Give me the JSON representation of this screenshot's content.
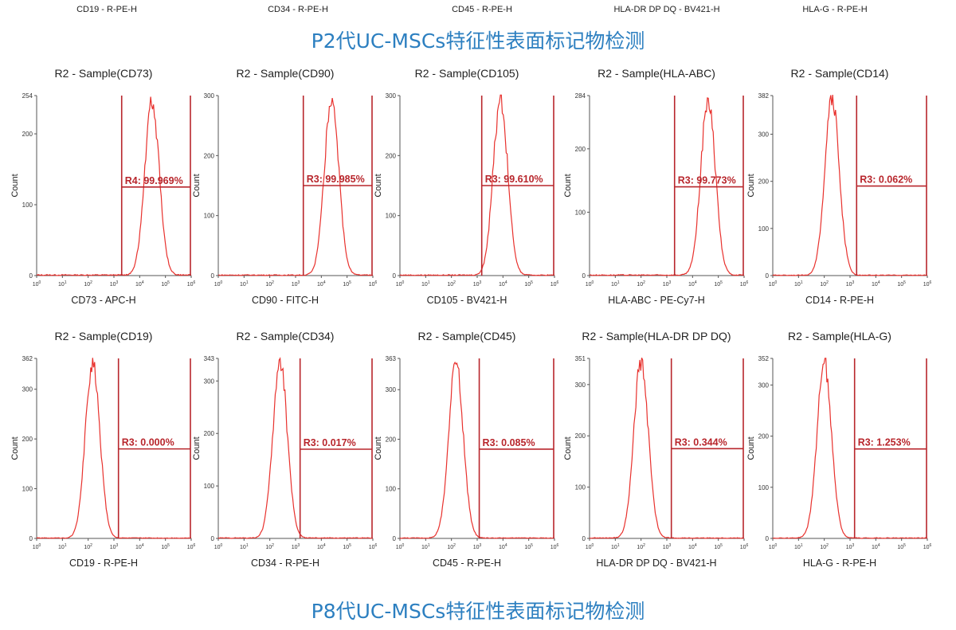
{
  "top_partial_labels": [
    "CD19 - R-PE-H",
    "CD34 - R-PE-H",
    "CD45 - R-PE-H",
    "HLA-DR DP DQ - BV421-H",
    "HLA-G - R-PE-H"
  ],
  "title_top": "P2代UC-MSCs特征性表面标记物检测",
  "title_bottom": "P8代UC-MSCs特征性表面标记物检测",
  "colors": {
    "title": "#2c7fc0",
    "histogram": "#e8312d",
    "gate": "#b8262c",
    "axis": "#555555"
  },
  "chart_data": [
    {
      "type": "area",
      "title": "R2 - Sample(CD73)",
      "xlabel": "CD73 - APC-H",
      "ylabel": "Count",
      "x_scale": "log",
      "xlim": [
        1,
        1000000
      ],
      "ylim": [
        0,
        254
      ],
      "yticks": [
        0,
        100,
        200,
        254
      ],
      "peak_x": 30000,
      "peak_y": 254,
      "gate_x": [
        2000,
        1000000
      ],
      "gate_label": "R4: 99.969%",
      "gate_y": 125
    },
    {
      "type": "area",
      "title": "R2 - Sample(CD90)",
      "xlabel": "CD90 - FITC-H",
      "ylabel": "Count",
      "x_scale": "log",
      "xlim": [
        1,
        1000000
      ],
      "ylim": [
        0,
        300
      ],
      "yticks": [
        0,
        100,
        200,
        300
      ],
      "peak_x": 25000,
      "peak_y": 300,
      "gate_x": [
        2000,
        1000000
      ],
      "gate_label": "R3: 99.985%",
      "gate_y": 150
    },
    {
      "type": "area",
      "title": "R2 - Sample(CD105)",
      "xlabel": "CD105 - BV421-H",
      "ylabel": "Count",
      "x_scale": "log",
      "xlim": [
        1,
        1000000
      ],
      "ylim": [
        0,
        300
      ],
      "yticks": [
        0,
        100,
        200,
        300
      ],
      "peak_x": 8000,
      "peak_y": 300,
      "gate_x": [
        1500,
        1000000
      ],
      "gate_label": "R3: 99.610%",
      "gate_y": 150
    },
    {
      "type": "area",
      "title": "R2 - Sample(HLA-ABC)",
      "xlabel": "HLA-ABC - PE-Cy7-H",
      "ylabel": "Count",
      "x_scale": "log",
      "xlim": [
        1,
        1000000
      ],
      "ylim": [
        0,
        284
      ],
      "yticks": [
        0,
        100,
        200,
        284
      ],
      "peak_x": 40000,
      "peak_y": 284,
      "gate_x": [
        2000,
        1000000
      ],
      "gate_label": "R3: 99.773%",
      "gate_y": 140
    },
    {
      "type": "area",
      "title": "R2 - Sample(CD14)",
      "xlabel": "CD14 - R-PE-H",
      "ylabel": "Count",
      "x_scale": "log",
      "xlim": [
        1,
        1000000
      ],
      "ylim": [
        0,
        382
      ],
      "yticks": [
        0,
        100,
        200,
        300,
        382
      ],
      "peak_x": 200,
      "peak_y": 382,
      "gate_x": [
        1800,
        1000000
      ],
      "gate_label": "R3: 0.062%",
      "gate_y": 190
    },
    {
      "type": "area",
      "title": "R2 - Sample(CD19)",
      "xlabel": "CD19 - R-PE-H",
      "ylabel": "Count",
      "x_scale": "log",
      "xlim": [
        1,
        1000000
      ],
      "ylim": [
        0,
        362
      ],
      "yticks": [
        0,
        100,
        200,
        300,
        362
      ],
      "peak_x": 150,
      "peak_y": 362,
      "gate_x": [
        1500,
        1000000
      ],
      "gate_label": "R3: 0.000%",
      "gate_y": 180
    },
    {
      "type": "area",
      "title": "R2 - Sample(CD34)",
      "xlabel": "CD34 - R-PE-H",
      "ylabel": "Count",
      "x_scale": "log",
      "xlim": [
        1,
        1000000
      ],
      "ylim": [
        0,
        343
      ],
      "yticks": [
        0,
        100,
        200,
        300,
        343
      ],
      "peak_x": 250,
      "peak_y": 343,
      "gate_x": [
        1500,
        1000000
      ],
      "gate_label": "R3: 0.017%",
      "gate_y": 170
    },
    {
      "type": "area",
      "title": "R2 - Sample(CD45)",
      "xlabel": "CD45 - R-PE-H",
      "ylabel": "Count",
      "x_scale": "log",
      "xlim": [
        1,
        1000000
      ],
      "ylim": [
        0,
        363
      ],
      "yticks": [
        0,
        100,
        200,
        300,
        363
      ],
      "peak_x": 150,
      "peak_y": 363,
      "gate_x": [
        1200,
        1000000
      ],
      "gate_label": "R3: 0.085%",
      "gate_y": 180
    },
    {
      "type": "area",
      "title": "R2 - Sample(HLA-DR DP DQ)",
      "xlabel": "HLA-DR DP DQ - BV421-H",
      "ylabel": "Count",
      "x_scale": "log",
      "xlim": [
        1,
        1000000
      ],
      "ylim": [
        0,
        351
      ],
      "yticks": [
        0,
        100,
        200,
        300,
        351
      ],
      "peak_x": 100,
      "peak_y": 351,
      "gate_x": [
        1500,
        1000000
      ],
      "gate_label": "R3: 0.344%",
      "gate_y": 175
    },
    {
      "type": "area",
      "title": "R2 - Sample(HLA-G)",
      "xlabel": "HLA-G - R-PE-H",
      "ylabel": "Count",
      "x_scale": "log",
      "xlim": [
        1,
        1000000
      ],
      "ylim": [
        0,
        352
      ],
      "yticks": [
        0,
        100,
        200,
        300,
        352
      ],
      "peak_x": 100,
      "peak_y": 352,
      "gate_x": [
        1500,
        1000000
      ],
      "gate_label": "R3: 1.253%",
      "gate_y": 175
    }
  ]
}
